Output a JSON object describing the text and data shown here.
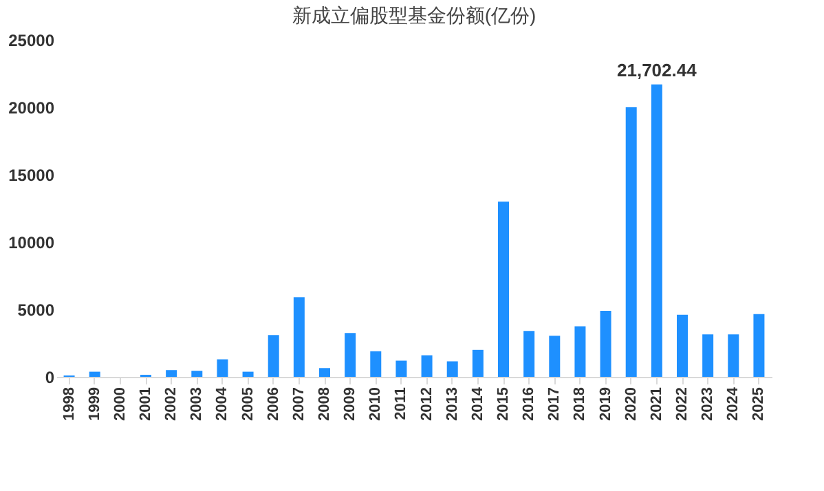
{
  "chart_data": {
    "type": "bar",
    "title": "新成立偏股型基金份额(亿份)",
    "categories": [
      "1998",
      "1999",
      "2000",
      "2001",
      "2002",
      "2003",
      "2004",
      "2005",
      "2006",
      "2007",
      "2008",
      "2009",
      "2010",
      "2011",
      "2012",
      "2013",
      "2014",
      "2015",
      "2016",
      "2017",
      "2018",
      "2019",
      "2020",
      "2021",
      "2022",
      "2023",
      "2024",
      "2025"
    ],
    "values": [
      100,
      380,
      0,
      150,
      500,
      450,
      1300,
      380,
      3100,
      5900,
      650,
      3250,
      1900,
      1200,
      1600,
      1150,
      2000,
      13000,
      3400,
      3050,
      3750,
      4900,
      20000,
      21702.44,
      4600,
      3150,
      3150,
      4650
    ],
    "value_labels": [
      null,
      null,
      null,
      null,
      null,
      null,
      null,
      null,
      null,
      null,
      null,
      null,
      null,
      null,
      null,
      null,
      null,
      null,
      null,
      null,
      null,
      null,
      null,
      "21,702.44",
      null,
      null,
      null,
      null
    ],
    "color": "#1e90ff",
    "ylim": [
      0,
      25000
    ],
    "yticks": [
      0,
      5000,
      10000,
      15000,
      20000,
      25000
    ],
    "grid": false
  }
}
